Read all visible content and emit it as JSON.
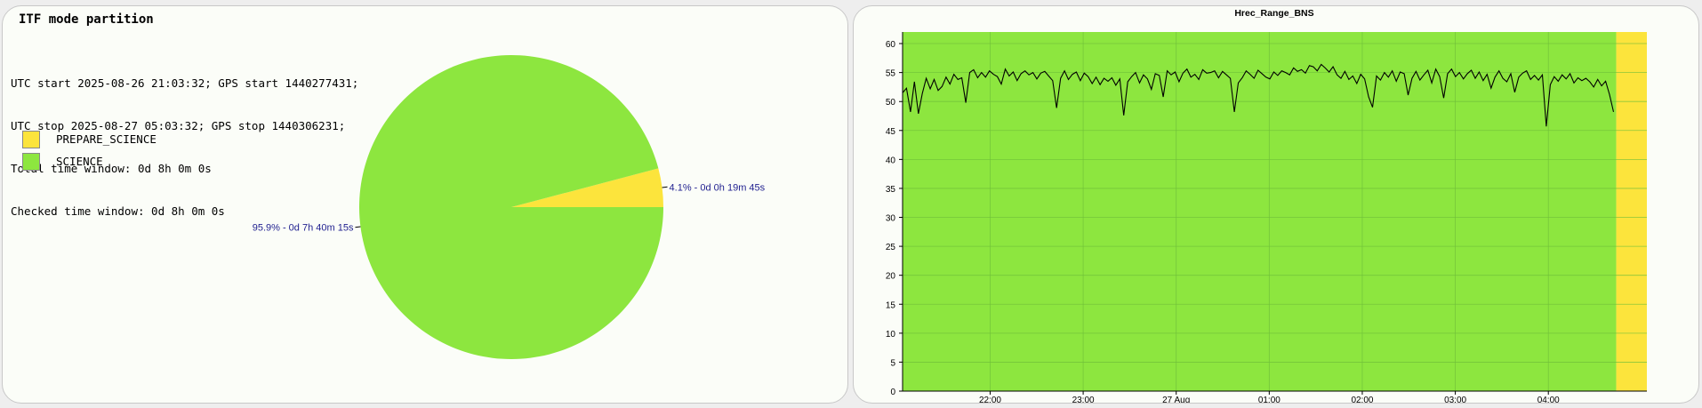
{
  "left_panel": {
    "title": "ITF mode partition",
    "info_lines": [
      "UTC start 2025-08-26 21:03:32; GPS start 1440277431;",
      "UTC stop 2025-08-27 05:03:32; GPS stop 1440306231;",
      "Total time window: 0d 8h 0m 0s",
      "Checked time window: 0d 8h 0m 0s"
    ],
    "legend": [
      {
        "label": "PREPARE_SCIENCE",
        "color": "#fce43c"
      },
      {
        "label": "SCIENCE",
        "color": "#8de63f"
      }
    ]
  },
  "chart_data": [
    {
      "type": "pie",
      "slices": [
        {
          "name": "PREPARE_SCIENCE",
          "value": 4.1,
          "label": "4.1% - 0d 0h 19m 45s",
          "color": "#fce43c"
        },
        {
          "name": "SCIENCE",
          "value": 95.9,
          "label": "95.9% - 0d 7h 40m 15s",
          "color": "#8de63f"
        }
      ],
      "label_color": "#1f1f8f"
    },
    {
      "type": "line",
      "title": "Hrec_Range_BNS",
      "xlabel": "",
      "ylabel": "",
      "x_range": [
        "2025-08-26 21:03:32",
        "2025-08-27 05:03:32"
      ],
      "x_ticks": [
        "22:00",
        "23:00",
        "27 Aug",
        "01:00",
        "02:00",
        "03:00",
        "04:00"
      ],
      "ylim": [
        0,
        62
      ],
      "y_ticks": [
        0,
        5,
        10,
        15,
        20,
        25,
        30,
        35,
        40,
        45,
        50,
        55,
        60
      ],
      "grid": true,
      "line_color": "#000000",
      "background_bands": [
        {
          "state": "SCIENCE",
          "from": "2025-08-26 21:03:32",
          "to": "2025-08-27 04:43:47",
          "color": "#8de63f"
        },
        {
          "state": "PREPARE_SCIENCE",
          "from": "2025-08-27 04:43:47",
          "to": "2025-08-27 05:03:32",
          "color": "#fce43c"
        }
      ],
      "series": [
        {
          "x_start": "2025-08-26 21:03:32",
          "x_end": "2025-08-27 04:42:00",
          "values": [
            51.5,
            52.3,
            48.2,
            53.4,
            47.9,
            51.4,
            54.0,
            52.2,
            53.8,
            51.9,
            52.6,
            54.2,
            53.0,
            54.7,
            53.8,
            54.1,
            49.8,
            55.0,
            55.5,
            54.1,
            55.0,
            54.2,
            55.3,
            54.7,
            54.3,
            53.0,
            55.6,
            54.4,
            55.1,
            53.6,
            54.8,
            55.3,
            54.6,
            55.0,
            53.9,
            54.9,
            55.2,
            54.4,
            53.6,
            48.9,
            54.0,
            55.3,
            53.8,
            54.7,
            55.1,
            53.6,
            54.9,
            54.3,
            53.1,
            54.2,
            52.9,
            54.0,
            53.5,
            54.1,
            52.8,
            53.9,
            47.6,
            53.4,
            54.3,
            55.0,
            53.2,
            54.6,
            53.9,
            52.1,
            54.8,
            54.5,
            50.8,
            55.3,
            54.6,
            55.1,
            53.4,
            54.9,
            55.6,
            54.2,
            54.7,
            53.8,
            55.5,
            54.9,
            55.0,
            55.3,
            54.1,
            55.2,
            54.6,
            54.0,
            48.2,
            53.2,
            54.1,
            55.3,
            54.7,
            54.0,
            55.4,
            54.8,
            54.2,
            53.9,
            55.1,
            54.5,
            55.3,
            55.0,
            54.6,
            55.8,
            55.2,
            55.5,
            54.9,
            56.2,
            56.0,
            55.3,
            56.4,
            55.8,
            55.1,
            56.0,
            54.6,
            54.0,
            55.2,
            53.8,
            54.4,
            53.1,
            54.7,
            53.9,
            50.8,
            49.0,
            54.4,
            53.7,
            55.0,
            54.2,
            55.3,
            53.5,
            55.1,
            54.8,
            51.1,
            54.0,
            55.2,
            53.7,
            54.6,
            55.4,
            53.2,
            55.6,
            54.3,
            50.6,
            54.8,
            55.6,
            54.3,
            55.0,
            53.9,
            54.8,
            55.4,
            54.0,
            55.1,
            53.6,
            54.7,
            52.3,
            54.2,
            55.3,
            54.0,
            53.4,
            54.8,
            51.6,
            54.2,
            54.9,
            55.3,
            53.8,
            54.5,
            53.7,
            54.6,
            45.7,
            52.9,
            54.3,
            53.5,
            54.6,
            53.9,
            54.8,
            53.2,
            54.1,
            53.6,
            54.0,
            53.4,
            52.5,
            53.8,
            52.7,
            53.5,
            51.2,
            48.2
          ]
        }
      ]
    }
  ]
}
